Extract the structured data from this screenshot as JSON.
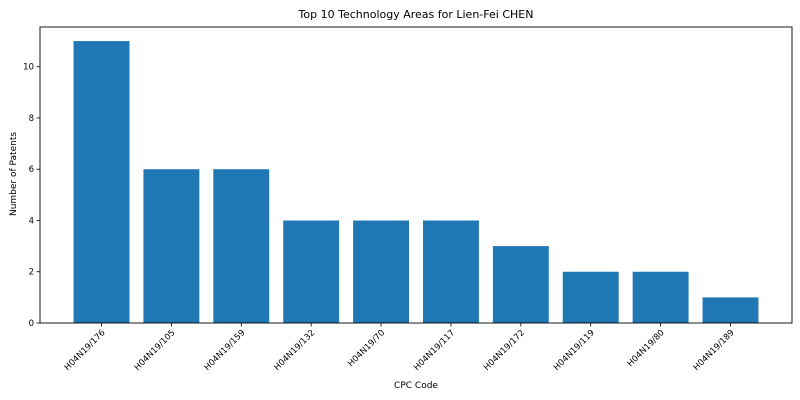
{
  "chart_data": {
    "type": "bar",
    "title": "Top 10 Technology Areas for Lien-Fei CHEN",
    "xlabel": "CPC Code",
    "ylabel": "Number of Patents",
    "categories": [
      "H04N19/176",
      "H04N19/105",
      "H04N19/159",
      "H04N19/132",
      "H04N19/70",
      "H04N19/117",
      "H04N19/172",
      "H04N19/119",
      "H04N19/80",
      "H04N19/189"
    ],
    "values": [
      11,
      6,
      6,
      4,
      4,
      4,
      3,
      2,
      2,
      1
    ],
    "ylim": [
      0,
      11.55
    ],
    "yticks": [
      0,
      2,
      4,
      6,
      8,
      10
    ],
    "grid": false,
    "bar_color": "#1f77b4"
  }
}
